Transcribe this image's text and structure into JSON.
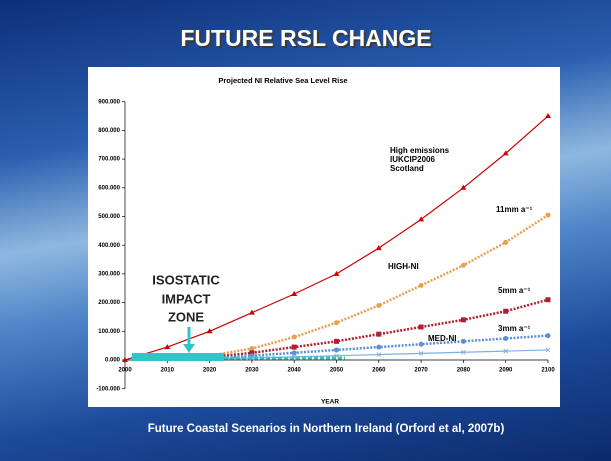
{
  "slide_title": "FUTURE RSL CHANGE",
  "caption": "Future Coastal Scenarios in Northern Ireland (Orford et al, 2007b)",
  "chart_data": {
    "type": "line",
    "title": "Projected NI Relative Sea Level Rise",
    "x_label": "YEAR",
    "x": [
      2000,
      2010,
      2020,
      2030,
      2040,
      2050,
      2060,
      2070,
      2080,
      2090,
      2100
    ],
    "xlim": [
      2000,
      2100
    ],
    "xticks": [
      2000,
      2010,
      2020,
      2030,
      2040,
      2050,
      2060,
      2070,
      2080,
      2090,
      2100
    ],
    "ylim": [
      -100,
      900
    ],
    "yticks": [
      {
        "value": -100,
        "label": "-100.000"
      },
      {
        "value": 0,
        "label": "0.000"
      },
      {
        "value": 100,
        "label": "100.000"
      },
      {
        "value": 200,
        "label": "200.000"
      },
      {
        "value": 300,
        "label": "300.000"
      },
      {
        "value": 400,
        "label": "400.000"
      },
      {
        "value": 500,
        "label": "500.000"
      },
      {
        "value": 600,
        "label": "600.000"
      },
      {
        "value": 700,
        "label": "700.000"
      },
      {
        "value": 800,
        "label": "800.000"
      },
      {
        "value": 900,
        "label": "900.000"
      }
    ],
    "series": [
      {
        "color": "#cc0000",
        "marker": "triangle",
        "values": [
          0,
          45,
          100,
          165,
          230,
          300,
          390,
          490,
          600,
          720,
          850
        ]
      },
      {
        "color": "#e8a050",
        "marker": "circle",
        "values": [
          null,
          null,
          15,
          40,
          80,
          130,
          190,
          260,
          330,
          410,
          505
        ]
      },
      {
        "color": "#b02030",
        "marker": "square",
        "values": [
          null,
          null,
          10,
          25,
          45,
          65,
          90,
          115,
          140,
          170,
          210
        ]
      },
      {
        "color": "#5b8fd6",
        "marker": "circle",
        "values": [
          null,
          null,
          5,
          15,
          25,
          35,
          45,
          55,
          65,
          75,
          85
        ]
      },
      {
        "color": "#7fb0e0",
        "marker": "cross",
        "values": [
          null,
          null,
          3,
          7,
          11,
          15,
          19,
          23,
          27,
          31,
          35
        ]
      }
    ],
    "annotations": [
      "High emissions",
      "IUKCIP2006",
      "Scotland",
      "11mm a⁻¹",
      "HIGH-NI",
      "5mm a⁻¹",
      "MED-NI",
      "3mm a⁻¹",
      "ISOSTATIC",
      "IMPACT",
      "ZONE"
    ]
  }
}
